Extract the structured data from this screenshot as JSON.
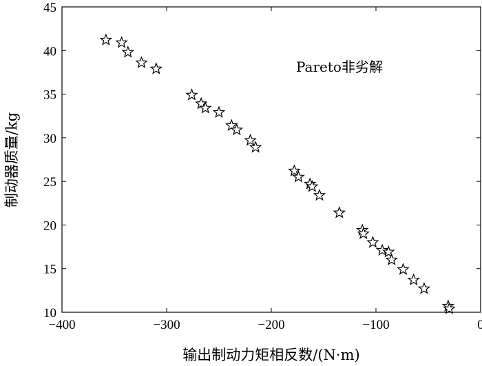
{
  "chart_data": {
    "type": "scatter",
    "title": "",
    "xlabel": "输出制动力矩相反数/(N·m)",
    "ylabel": "制动器质量/kg",
    "xlim": [
      -400,
      0
    ],
    "ylim": [
      10,
      45
    ],
    "xticks": [
      -400,
      -300,
      -200,
      -100,
      0
    ],
    "yticks": [
      10,
      15,
      20,
      25,
      30,
      35,
      40,
      45
    ],
    "xtick_labels": [
      "−400",
      "−300",
      "−200",
      "−100",
      "0"
    ],
    "ytick_labels": [
      "10",
      "15",
      "20",
      "25",
      "30",
      "35",
      "40",
      "45"
    ],
    "grid": false,
    "marker": "star",
    "annotation": "Pareto非劣解",
    "series": [
      {
        "points": [
          [
            -358,
            41.2
          ],
          [
            -343,
            40.9
          ],
          [
            -337,
            39.8
          ],
          [
            -324,
            38.6
          ],
          [
            -310,
            37.9
          ],
          [
            -276,
            34.9
          ],
          [
            -267,
            33.9
          ],
          [
            -263,
            33.4
          ],
          [
            -250,
            32.9
          ],
          [
            -238,
            31.4
          ],
          [
            -233,
            30.9
          ],
          [
            -220,
            29.7
          ],
          [
            -215,
            28.9
          ],
          [
            -178,
            26.2
          ],
          [
            -174,
            25.5
          ],
          [
            -163,
            24.7
          ],
          [
            -161,
            24.4
          ],
          [
            -154,
            23.4
          ],
          [
            -135,
            21.4
          ],
          [
            -113,
            19.4
          ],
          [
            -112,
            19.0
          ],
          [
            -103,
            18.0
          ],
          [
            -94,
            17.1
          ],
          [
            -88,
            16.9
          ],
          [
            -85,
            16.0
          ],
          [
            -74,
            14.9
          ],
          [
            -64,
            13.7
          ],
          [
            -54,
            12.7
          ],
          [
            -31,
            10.7
          ],
          [
            -30,
            10.4
          ]
        ]
      }
    ]
  }
}
